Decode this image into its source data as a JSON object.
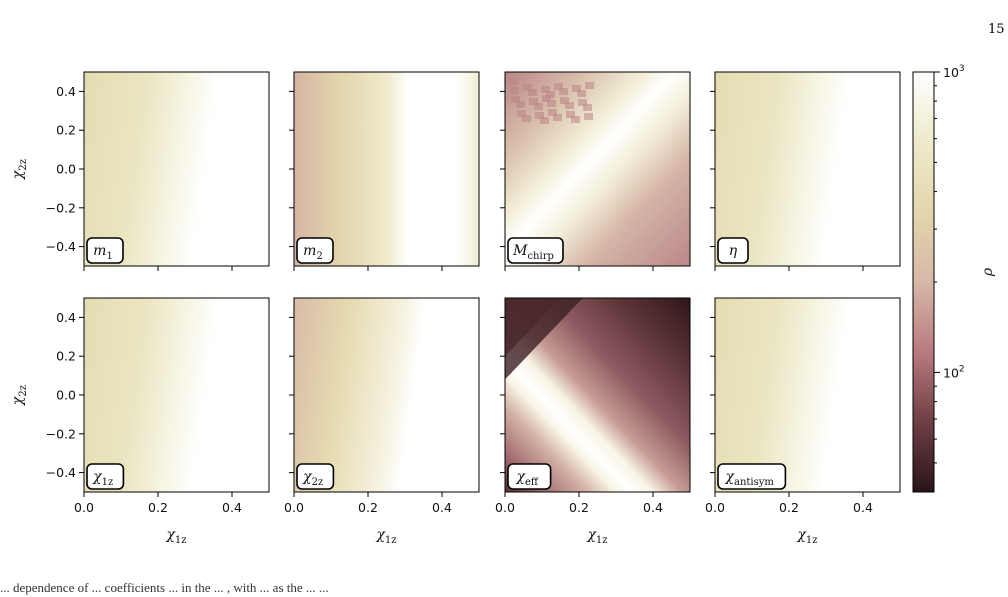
{
  "page_number": "15",
  "caption_fragment": "... dependence of ... coefficients ... in the ... , with ... as the ... ...",
  "chart_data": {
    "type": "heatmap",
    "layout": "2x4 grid of contour maps",
    "xlabel": {
      "sym": "χ",
      "sub": "1z"
    },
    "ylabel": {
      "sym": "χ",
      "sub": "2z"
    },
    "xlim": [
      0.0,
      0.5
    ],
    "ylim": [
      -0.5,
      0.5
    ],
    "x_ticks": [
      "0.0",
      "0.2",
      "0.4"
    ],
    "y_ticks": [
      "0.4",
      "0.2",
      "0.0",
      "−0.2",
      "−0.4"
    ],
    "colorbar": {
      "label": "ρ",
      "scale": "log",
      "range": [
        40,
        1000
      ],
      "tick_major": [
        "10",
        "10"
      ],
      "tick_exp": [
        "3",
        "2"
      ],
      "colors": [
        "#2a1418",
        "#6e3f45",
        "#b87a7f",
        "#d7b8a8",
        "#e3d6ab",
        "#eeeacb",
        "#ffffff"
      ]
    },
    "panels": [
      {
        "label": {
          "sym": "m",
          "sub": "1"
        },
        "description": "light olive near χ1z=0, white for χ1z > 0.25"
      },
      {
        "label": {
          "sym": "m",
          "sub": "2"
        },
        "description": "rose/olive near χ1z=0, white for χ1z > 0.3"
      },
      {
        "label": {
          "sym": "M",
          "sub": "chirp"
        },
        "description": "white diagonal band, rose at top-left and bottom-right"
      },
      {
        "label": {
          "sym": "η",
          "sub": ""
        },
        "description": "olive left, white right"
      },
      {
        "label": {
          "sym": "χ",
          "sub": "1z"
        },
        "description": "olive left, white beyond a diagonal boundary"
      },
      {
        "label": {
          "sym": "χ",
          "sub": "2z"
        },
        "description": "olive left, white right"
      },
      {
        "label": {
          "sym": "χ",
          "sub": "eff"
        },
        "description": "white diagonal band, dark brown to rose elsewhere"
      },
      {
        "label": {
          "sym": "χ",
          "sub": "antisym"
        },
        "description": "olive left, white right"
      }
    ]
  }
}
